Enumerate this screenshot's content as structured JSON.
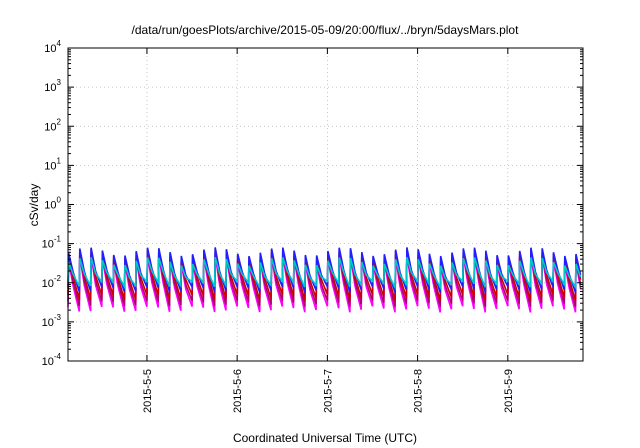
{
  "chart_data": {
    "type": "line",
    "title": "/data/run/goesPlots/archive/2015-05-09/20:00/flux/../bryn/5daysMars.plot",
    "xlabel": "Coordinated Universal Time (UTC)",
    "ylabel": "cSv/day",
    "y_scale": "log",
    "ylim": [
      0.0001,
      10000
    ],
    "y_ticks": [
      {
        "base": "10",
        "exp": "-4"
      },
      {
        "base": "10",
        "exp": "-3"
      },
      {
        "base": "10",
        "exp": "-2"
      },
      {
        "base": "10",
        "exp": "-1"
      },
      {
        "base": "10",
        "exp": "0"
      },
      {
        "base": "10",
        "exp": "1"
      },
      {
        "base": "10",
        "exp": "2"
      },
      {
        "base": "10",
        "exp": "3"
      },
      {
        "base": "10",
        "exp": "4"
      }
    ],
    "xlim": [
      "2015-05-04 03:00",
      "2015-05-09 20:00"
    ],
    "x_ticks": [
      "2015-5-5",
      "2015-5-6",
      "2015-5-7",
      "2015-5-8",
      "2015-5-9"
    ],
    "grid": true,
    "legend": "none",
    "cycle_hours": 3,
    "series": [
      {
        "color": "#ff00ff",
        "peak": 0.05,
        "trough": 0.0025
      },
      {
        "color": "#b0006a",
        "peak": 0.06,
        "trough": 0.0035
      },
      {
        "color": "#cc0000",
        "peak": 0.075,
        "trough": 0.005
      },
      {
        "color": "#2020ff",
        "peak": 0.08,
        "trough": 0.008
      },
      {
        "color": "#00c8c8",
        "peak": 0.045,
        "trough": 0.011
      }
    ]
  }
}
